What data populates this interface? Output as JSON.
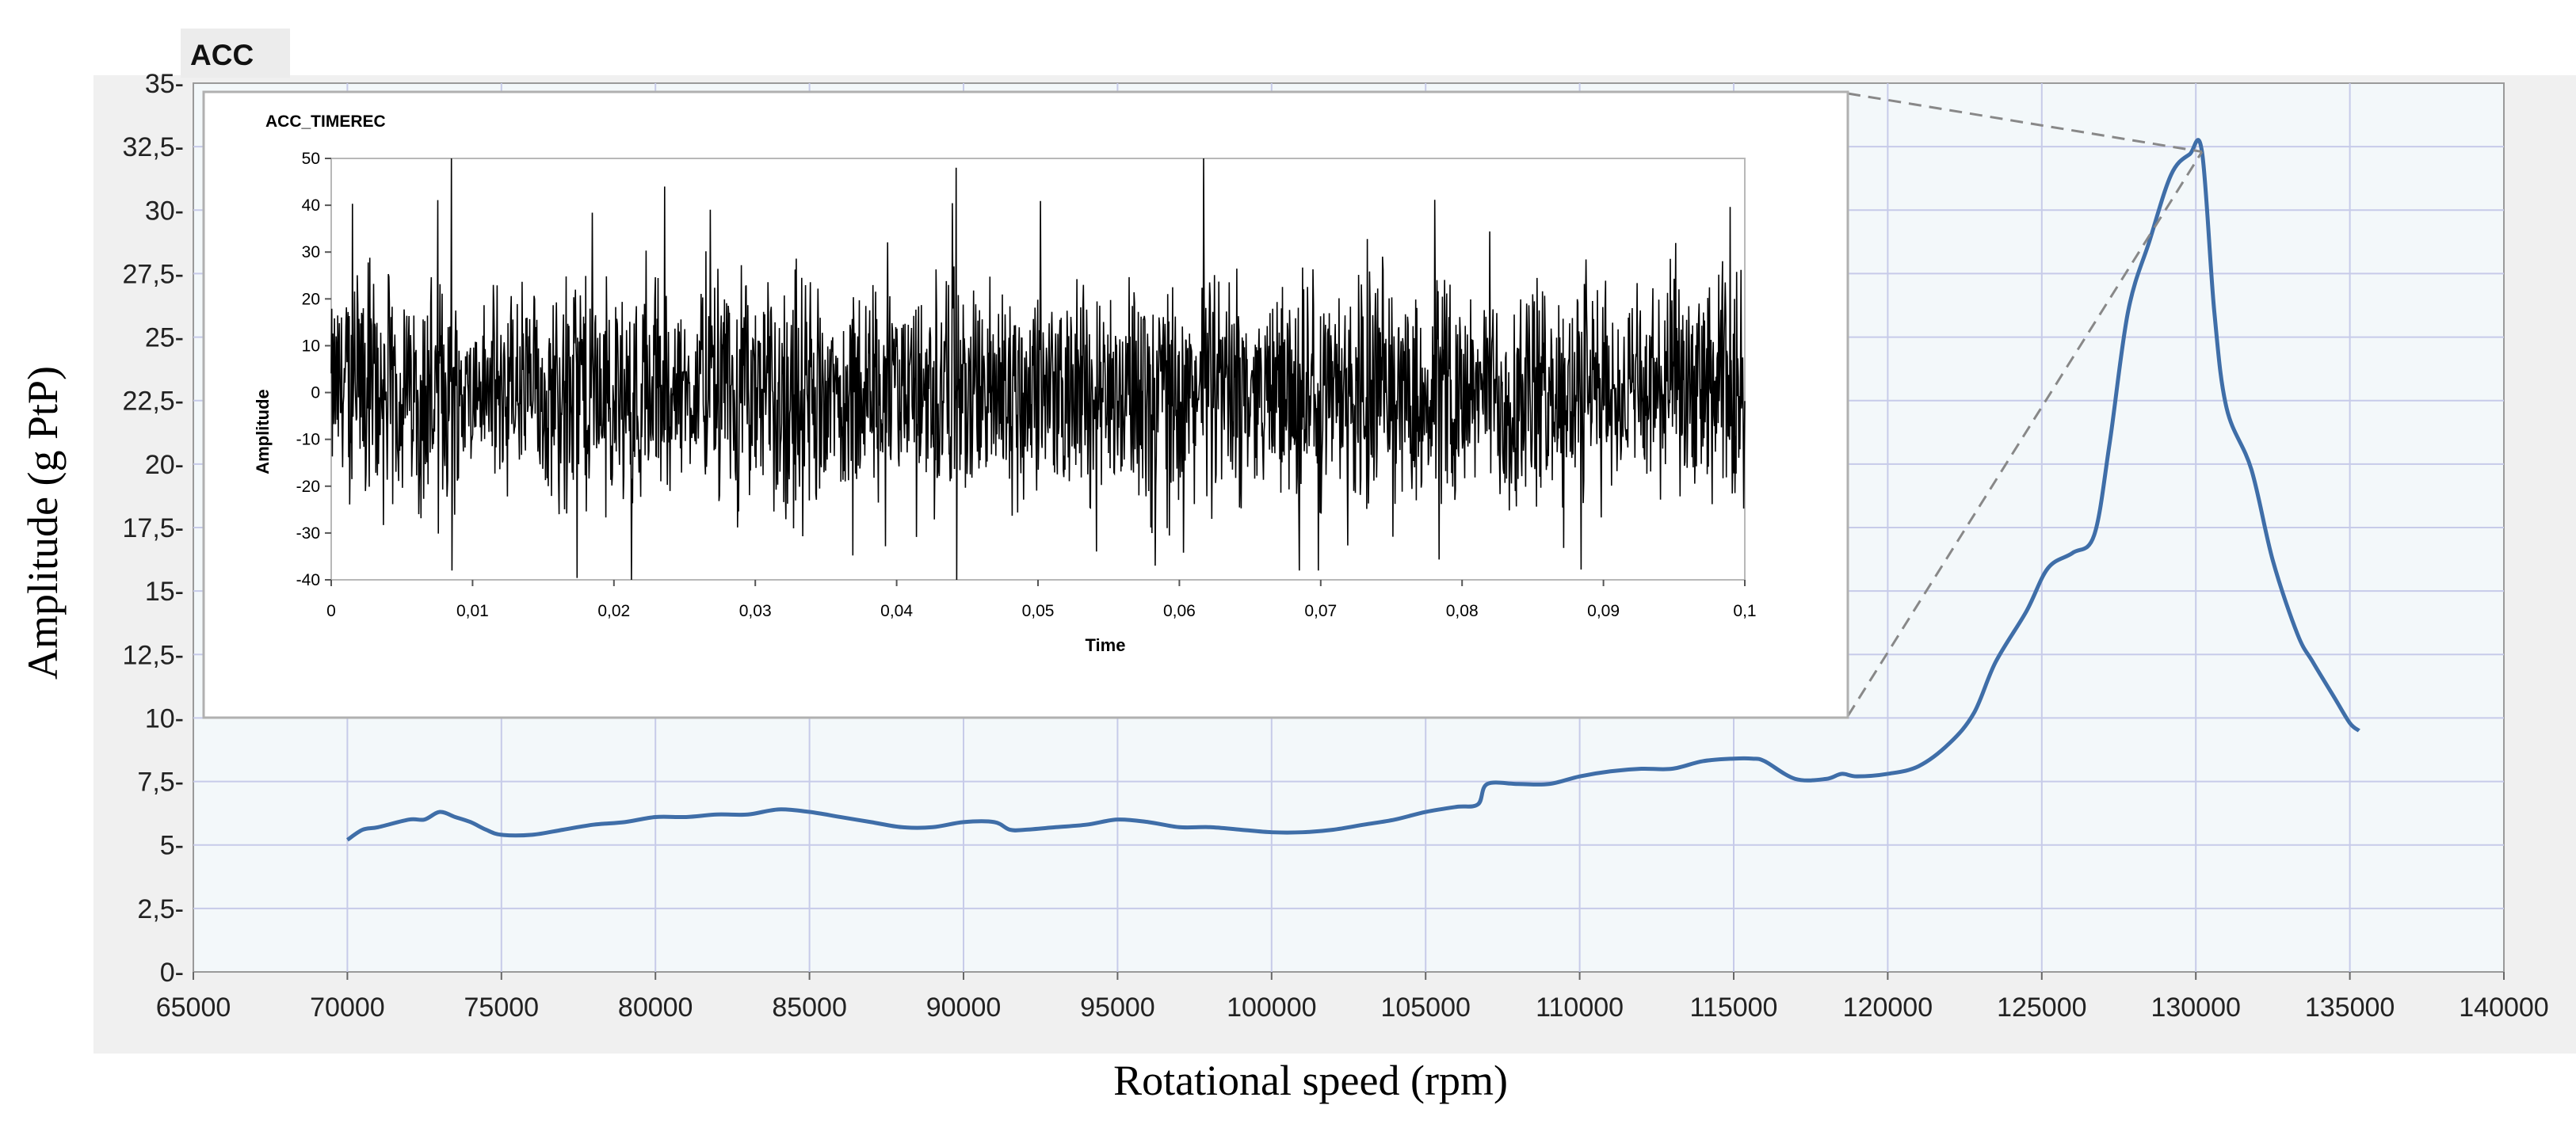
{
  "main_chart": {
    "tab_title": "ACC",
    "xlabel": "Rotational speed (rpm)",
    "ylabel": "Amplitude (g PtP)",
    "x_ticks": [
      "65000",
      "70000",
      "75000",
      "80000",
      "85000",
      "90000",
      "95000",
      "100000",
      "105000",
      "110000",
      "115000",
      "120000",
      "125000",
      "130000",
      "135000",
      "140000"
    ],
    "y_ticks": [
      "0-",
      "2,5-",
      "5-",
      "7,5-",
      "10-",
      "12,5-",
      "15-",
      "17,5-",
      "20-",
      "22,5-",
      "25-",
      "27,5-",
      "30-",
      "32,5-",
      "35-"
    ]
  },
  "inset_chart": {
    "title": "ACC_TIMEREC",
    "xlabel": "Time",
    "ylabel": "Amplitude",
    "x_ticks": [
      "0",
      "0,01",
      "0,02",
      "0,03",
      "0,04",
      "0,05",
      "0,06",
      "0,07",
      "0,08",
      "0,09",
      "0,1"
    ],
    "y_ticks": [
      "-40",
      "-30",
      "-20",
      "-10",
      "0",
      "10",
      "20",
      "30",
      "40",
      "50"
    ]
  },
  "colors": {
    "main_line": "#3f6ea8",
    "plot_bg": "#f3f8fa",
    "grid": "#c7cbe9",
    "signal": "#000000",
    "zoom_lines": "#888888"
  },
  "chart_data": [
    {
      "type": "line",
      "title": "ACC",
      "xlabel": "Rotational speed (rpm)",
      "ylabel": "Amplitude (g PtP)",
      "xlim": [
        65000,
        140000
      ],
      "ylim": [
        0,
        35
      ],
      "grid": true,
      "x": [
        70000,
        70500,
        71000,
        72000,
        72500,
        73000,
        73500,
        74000,
        74500,
        75000,
        76000,
        77000,
        78000,
        79000,
        80000,
        81000,
        82000,
        83000,
        84000,
        85000,
        86000,
        87000,
        88000,
        89000,
        90000,
        91000,
        91500,
        92000,
        93000,
        94000,
        95000,
        96000,
        97000,
        98000,
        99000,
        100000,
        101000,
        102000,
        103000,
        104000,
        105000,
        106000,
        106700,
        107000,
        108000,
        109000,
        110000,
        111000,
        112000,
        113000,
        114000,
        115000,
        115600,
        116000,
        117000,
        118000,
        118500,
        119000,
        120000,
        121000,
        122000,
        122800,
        123500,
        124500,
        125200,
        126000,
        126700,
        127200,
        127800,
        128500,
        129200,
        129800,
        130200,
        130600,
        131000,
        131800,
        132500,
        133300,
        133800,
        134500,
        135000,
        135300
      ],
      "y": [
        5.2,
        5.6,
        5.7,
        6.0,
        6.0,
        6.3,
        6.1,
        5.9,
        5.6,
        5.4,
        5.4,
        5.6,
        5.8,
        5.9,
        6.1,
        6.1,
        6.2,
        6.2,
        6.4,
        6.3,
        6.1,
        5.9,
        5.7,
        5.7,
        5.9,
        5.9,
        5.6,
        5.6,
        5.7,
        5.8,
        6.0,
        5.9,
        5.7,
        5.7,
        5.6,
        5.5,
        5.5,
        5.6,
        5.8,
        6.0,
        6.3,
        6.5,
        6.6,
        7.4,
        7.4,
        7.4,
        7.7,
        7.9,
        8.0,
        8.0,
        8.3,
        8.4,
        8.4,
        8.3,
        7.6,
        7.6,
        7.8,
        7.7,
        7.8,
        8.1,
        9.0,
        10.2,
        12.2,
        14.2,
        15.9,
        16.5,
        17.2,
        20.8,
        26.0,
        28.8,
        31.4,
        32.2,
        32.3,
        26.0,
        22.2,
        19.8,
        16.2,
        13.3,
        12.2,
        10.8,
        9.8,
        9.5
      ]
    },
    {
      "type": "line",
      "title": "ACC_TIMEREC",
      "xlabel": "Time",
      "ylabel": "Amplitude",
      "xlim": [
        0,
        0.1
      ],
      "ylim": [
        -40,
        50
      ],
      "grid": false,
      "waveform": "dense vibration time record, centered near 0, typical envelope about +25/-25, peaks to ~+50 and ~-40",
      "peaks_x": [
        0.0085,
        0.0236,
        0.0442,
        0.0617
      ],
      "peaks_y": [
        50,
        44,
        48,
        50
      ],
      "troughs_x": [
        0.0085,
        0.0212,
        0.0442,
        0.0698
      ],
      "troughs_y": [
        -38,
        -40,
        -40,
        -38
      ]
    }
  ]
}
